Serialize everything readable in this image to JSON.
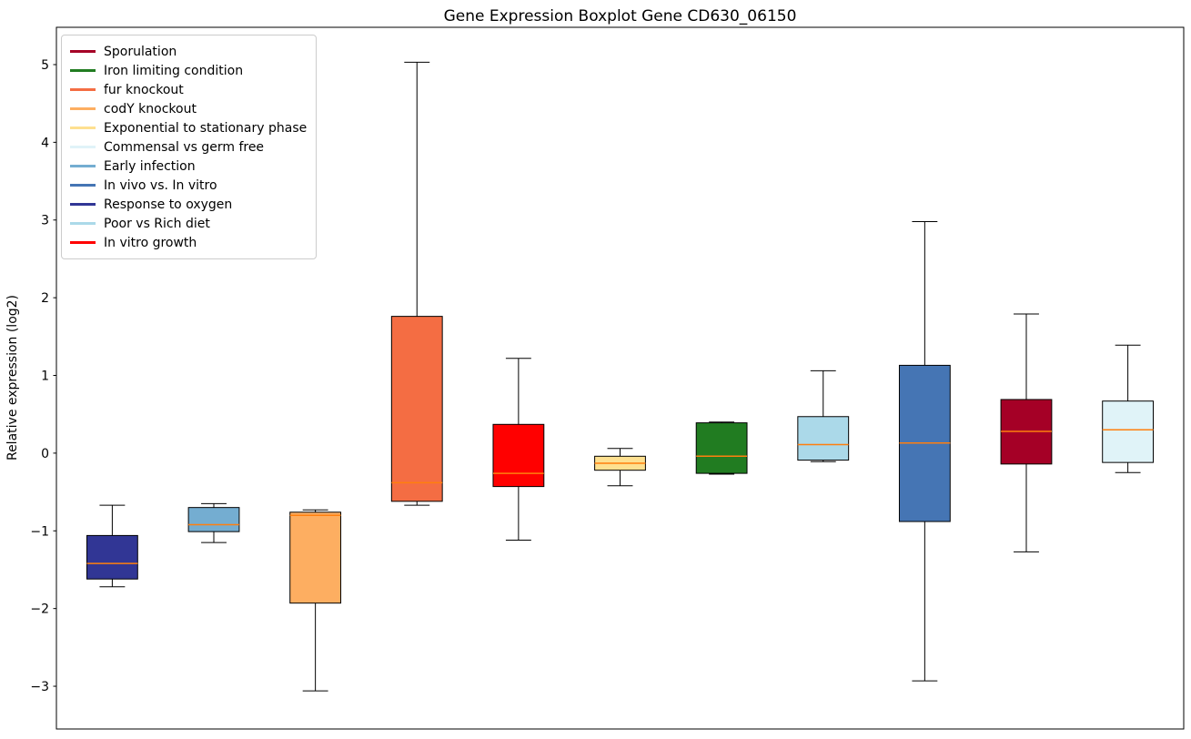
{
  "figure": {
    "title": "Gene Expression Boxplot Gene CD630_06150",
    "ylabel": "Relative expression (log2)"
  },
  "chart_data": {
    "type": "boxplot",
    "title": "Gene Expression Boxplot Gene CD630_06150",
    "xlabel": "",
    "ylabel": "Relative expression (log2)",
    "ylim": [
      -3.55,
      5.48
    ],
    "yticks": [
      5,
      4,
      3,
      2,
      1,
      0,
      -1,
      -2,
      -3
    ],
    "grid": false,
    "legend_position": "upper left",
    "median_color": "#ff7f0e",
    "box_edge_color": "#000000",
    "legend": [
      {
        "label": "Sporulation",
        "color": "#a50026"
      },
      {
        "label": "Iron limiting condition",
        "color": "#217c21"
      },
      {
        "label": "fur knockout",
        "color": "#f46d43"
      },
      {
        "label": "codY knockout",
        "color": "#fdae61"
      },
      {
        "label": "Exponential to stationary phase",
        "color": "#fee090"
      },
      {
        "label": "Commensal vs germ free",
        "color": "#e0f3f8"
      },
      {
        "label": "Early infection",
        "color": "#74add1"
      },
      {
        "label": "In vivo vs. In vitro",
        "color": "#4575b4"
      },
      {
        "label": "Response to oxygen",
        "color": "#313695"
      },
      {
        "label": "Poor vs Rich diet",
        "color": "#abd9e9"
      },
      {
        "label": "In vitro growth",
        "color": "#ff0000"
      }
    ],
    "boxes": [
      {
        "condition": "Response to oxygen",
        "color": "#313695",
        "whisker_low": -1.72,
        "q1": -1.62,
        "median": -1.42,
        "q3": -1.06,
        "whisker_high": -0.67
      },
      {
        "condition": "Early infection",
        "color": "#74add1",
        "whisker_low": -1.15,
        "q1": -1.01,
        "median": -0.92,
        "q3": -0.7,
        "whisker_high": -0.65
      },
      {
        "condition": "codY knockout",
        "color": "#fdae61",
        "whisker_low": -3.06,
        "q1": -1.93,
        "median": -0.8,
        "q3": -0.76,
        "whisker_high": -0.73
      },
      {
        "condition": "fur knockout",
        "color": "#f46d43",
        "whisker_low": -0.67,
        "q1": -0.62,
        "median": -0.38,
        "q3": 1.76,
        "whisker_high": 5.03
      },
      {
        "condition": "In vitro growth",
        "color": "#ff0000",
        "whisker_low": -1.12,
        "q1": -0.43,
        "median": -0.26,
        "q3": 0.37,
        "whisker_high": 1.22
      },
      {
        "condition": "Exponential to stationary phase",
        "color": "#fee090",
        "whisker_low": -0.42,
        "q1": -0.22,
        "median": -0.13,
        "q3": -0.04,
        "whisker_high": 0.06
      },
      {
        "condition": "Iron limiting condition",
        "color": "#217c21",
        "whisker_low": -0.27,
        "q1": -0.26,
        "median": -0.04,
        "q3": 0.39,
        "whisker_high": 0.4
      },
      {
        "condition": "Poor vs Rich diet",
        "color": "#abd9e9",
        "whisker_low": -0.11,
        "q1": -0.09,
        "median": 0.11,
        "q3": 0.47,
        "whisker_high": 1.06
      },
      {
        "condition": "In vivo vs. In vitro",
        "color": "#4575b4",
        "whisker_low": -2.93,
        "q1": -0.88,
        "median": 0.13,
        "q3": 1.13,
        "whisker_high": 2.98
      },
      {
        "condition": "Sporulation",
        "color": "#a50026",
        "whisker_low": -1.27,
        "q1": -0.14,
        "median": 0.28,
        "q3": 0.69,
        "whisker_high": 1.79
      },
      {
        "condition": "Commensal vs germ free",
        "color": "#e0f3f8",
        "whisker_low": -0.25,
        "q1": -0.12,
        "median": 0.3,
        "q3": 0.67,
        "whisker_high": 1.39
      }
    ]
  }
}
